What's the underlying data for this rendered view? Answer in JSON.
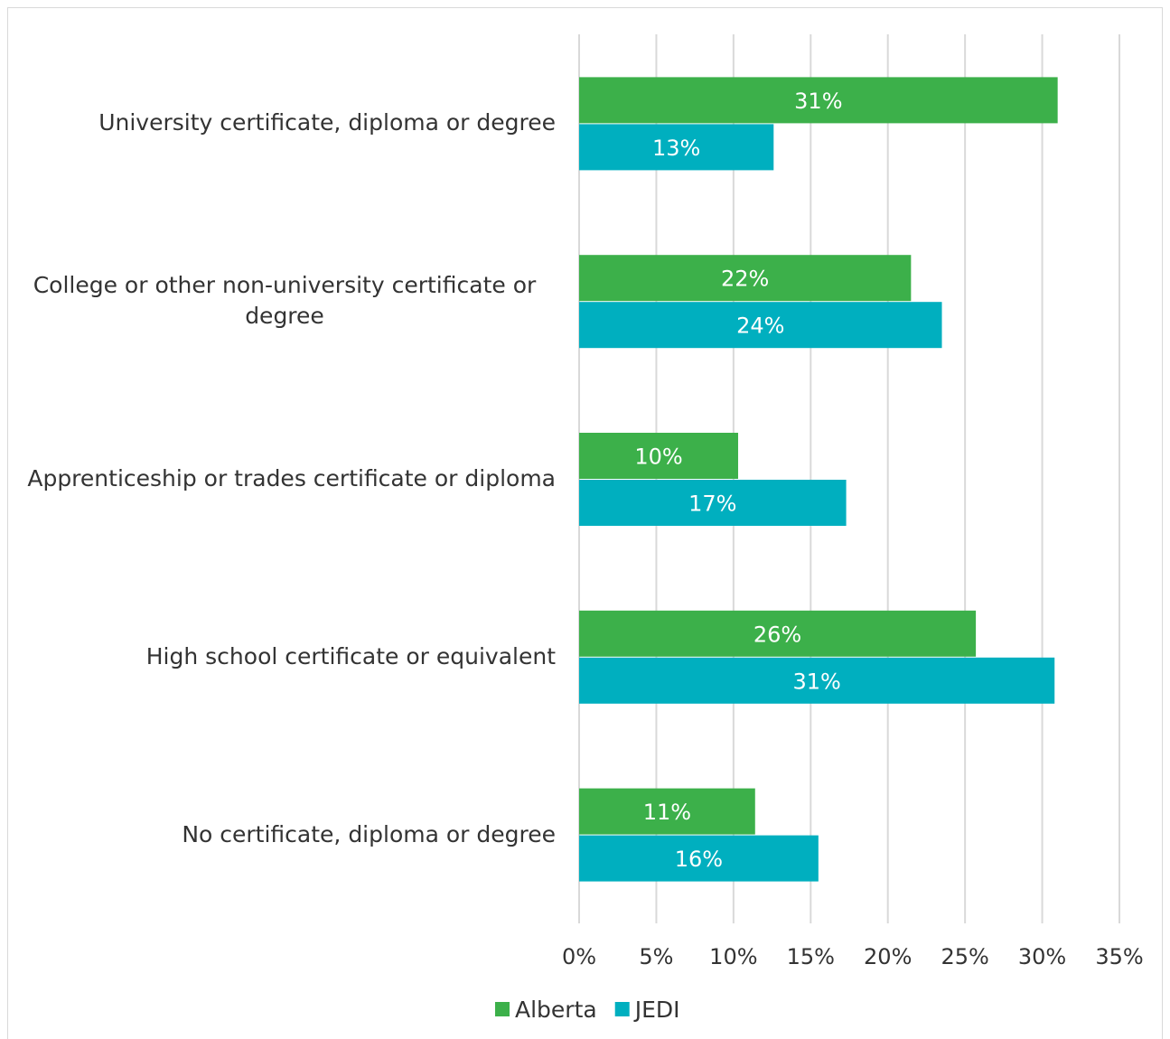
{
  "chart_data": {
    "type": "hbar",
    "categories": [
      "University certificate, diploma or degree",
      "College or other non-university certificate or degree",
      "Apprenticeship or trades certificate or diploma",
      "High school certificate or equivalent",
      "No certificate, diploma or degree"
    ],
    "series": [
      {
        "name": "Alberta",
        "color": "#3cb04a",
        "values": [
          31.0,
          21.5,
          10.3,
          25.7,
          11.4
        ],
        "value_labels": [
          "31%",
          "22%",
          "10%",
          "26%",
          "11%"
        ]
      },
      {
        "name": "JEDI",
        "color": "#00afbf",
        "values": [
          12.6,
          23.5,
          17.3,
          30.8,
          15.5
        ],
        "value_labels": [
          "13%",
          "24%",
          "17%",
          "31%",
          "16%"
        ]
      }
    ],
    "xlim": [
      0,
      35
    ],
    "xticks": [
      {
        "value": 0,
        "label": "0%"
      },
      {
        "value": 5,
        "label": "5%"
      },
      {
        "value": 10,
        "label": "10%"
      },
      {
        "value": 15,
        "label": "15%"
      },
      {
        "value": 20,
        "label": "20%"
      },
      {
        "value": 25,
        "label": "25%"
      },
      {
        "value": 30,
        "label": "30%"
      },
      {
        "value": 35,
        "label": "35%"
      }
    ],
    "grid": true,
    "legend": "bottom"
  }
}
